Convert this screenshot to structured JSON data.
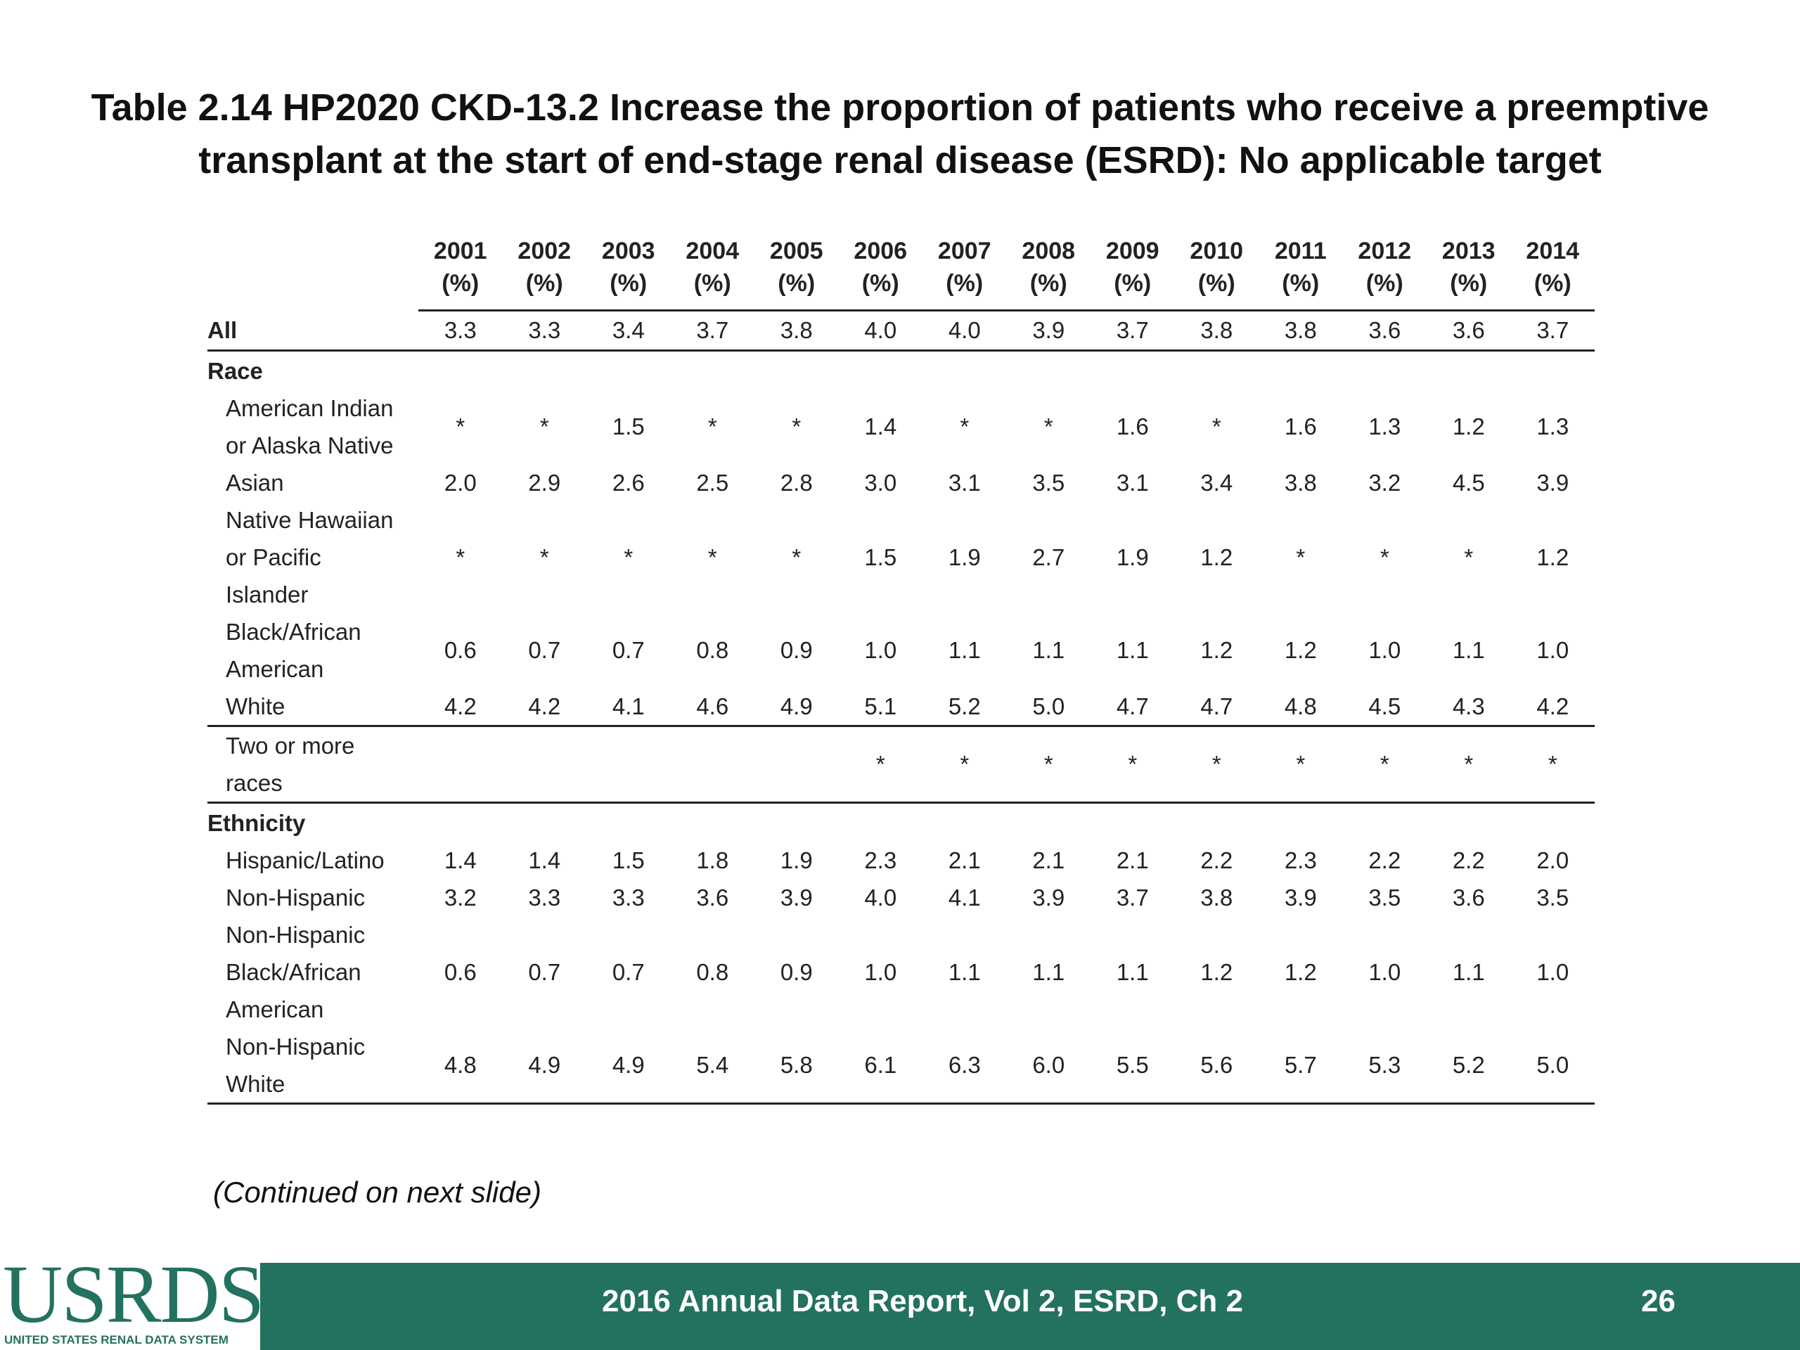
{
  "title": {
    "line1": "Table 2.14  HP2020 CKD-13.2 Increase the proportion of patients who receive a preemptive",
    "line2": "transplant at the start of end-stage renal disease (ESRD): No applicable target"
  },
  "table": {
    "years": [
      "2001",
      "2002",
      "2003",
      "2004",
      "2005",
      "2006",
      "2007",
      "2008",
      "2009",
      "2010",
      "2011",
      "2012",
      "2013",
      "2014"
    ],
    "unit": "(%)",
    "all": {
      "label": "All",
      "values": [
        "3.3",
        "3.3",
        "3.4",
        "3.7",
        "3.8",
        "4.0",
        "4.0",
        "3.9",
        "3.7",
        "3.8",
        "3.8",
        "3.6",
        "3.6",
        "3.7"
      ]
    },
    "race_heading": "Race",
    "race": [
      {
        "label": [
          "American Indian",
          "or Alaska Native"
        ],
        "values": [
          "*",
          "*",
          "1.5",
          "*",
          "*",
          "1.4",
          "*",
          "*",
          "1.6",
          "*",
          "1.6",
          "1.3",
          "1.2",
          "1.3"
        ]
      },
      {
        "label": [
          "Asian"
        ],
        "values": [
          "2.0",
          "2.9",
          "2.6",
          "2.5",
          "2.8",
          "3.0",
          "3.1",
          "3.5",
          "3.1",
          "3.4",
          "3.8",
          "3.2",
          "4.5",
          "3.9"
        ]
      },
      {
        "label": [
          "Native Hawaiian",
          "or Pacific",
          "Islander"
        ],
        "values": [
          "*",
          "*",
          "*",
          "*",
          "*",
          "1.5",
          "1.9",
          "2.7",
          "1.9",
          "1.2",
          "*",
          "*",
          "*",
          "1.2"
        ]
      },
      {
        "label": [
          "Black/African",
          "American"
        ],
        "values": [
          "0.6",
          "0.7",
          "0.7",
          "0.8",
          "0.9",
          "1.0",
          "1.1",
          "1.1",
          "1.1",
          "1.2",
          "1.2",
          "1.0",
          "1.1",
          "1.0"
        ]
      },
      {
        "label": [
          "White"
        ],
        "values": [
          "4.2",
          "4.2",
          "4.1",
          "4.6",
          "4.9",
          "5.1",
          "5.2",
          "5.0",
          "4.7",
          "4.7",
          "4.8",
          "4.5",
          "4.3",
          "4.2"
        ]
      },
      {
        "label": [
          "Two or more",
          "races"
        ],
        "values": [
          "",
          "",
          "",
          "",
          "",
          "*",
          "*",
          "*",
          "*",
          "*",
          "*",
          "*",
          "*",
          "*"
        ]
      }
    ],
    "ethnicity_heading": "Ethnicity",
    "ethnicity": [
      {
        "label": [
          "Hispanic/Latino"
        ],
        "values": [
          "1.4",
          "1.4",
          "1.5",
          "1.8",
          "1.9",
          "2.3",
          "2.1",
          "2.1",
          "2.1",
          "2.2",
          "2.3",
          "2.2",
          "2.2",
          "2.0"
        ]
      },
      {
        "label": [
          "Non-Hispanic"
        ],
        "values": [
          "3.2",
          "3.3",
          "3.3",
          "3.6",
          "3.9",
          "4.0",
          "4.1",
          "3.9",
          "3.7",
          "3.8",
          "3.9",
          "3.5",
          "3.6",
          "3.5"
        ]
      },
      {
        "label": [
          "Non-Hispanic",
          "Black/African",
          "American"
        ],
        "values": [
          "0.6",
          "0.7",
          "0.7",
          "0.8",
          "0.9",
          "1.0",
          "1.1",
          "1.1",
          "1.1",
          "1.2",
          "1.2",
          "1.0",
          "1.1",
          "1.0"
        ]
      },
      {
        "label": [
          "Non-Hispanic",
          "White"
        ],
        "values": [
          "4.8",
          "4.9",
          "4.9",
          "5.4",
          "5.8",
          "6.1",
          "6.3",
          "6.0",
          "5.5",
          "5.6",
          "5.7",
          "5.3",
          "5.2",
          "5.0"
        ]
      }
    ]
  },
  "continued_note": "(Continued on next slide)",
  "footer": {
    "logo_text": "USRDS",
    "logo_subtext": "UNITED STATES RENAL DATA SYSTEM",
    "report_text": "2016 Annual Data Report, Vol 2, ESRD, Ch 2",
    "page_number": "26",
    "bar_color": "#23715f"
  }
}
